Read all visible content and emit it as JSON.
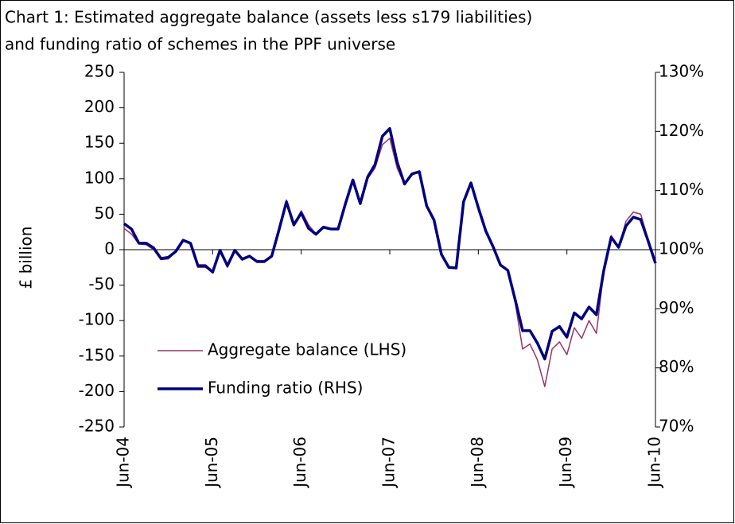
{
  "chart_data": {
    "type": "line",
    "title": [
      "Chart 1: Estimated aggregate balance (assets less s179 liabilities)",
      "and funding ratio of schemes in the PPF universe"
    ],
    "ylabel": "£ billion",
    "categories": [
      "Jun-04",
      null,
      null,
      null,
      null,
      null,
      null,
      null,
      null,
      null,
      null,
      null,
      "Jun-05",
      null,
      null,
      null,
      null,
      null,
      null,
      null,
      null,
      null,
      null,
      null,
      "Jun-06",
      null,
      null,
      null,
      null,
      null,
      null,
      null,
      null,
      null,
      null,
      null,
      "Jun-07",
      null,
      null,
      null,
      null,
      null,
      null,
      null,
      null,
      null,
      null,
      null,
      "Jun-08",
      null,
      null,
      null,
      null,
      null,
      null,
      null,
      null,
      null,
      null,
      null,
      "Jun-09",
      null,
      null,
      null,
      null,
      null,
      null,
      null,
      null,
      null,
      null,
      null,
      "Jun-10"
    ],
    "series": [
      {
        "name": "Aggregate balance (LHS)",
        "color": "#993366",
        "axis": "y",
        "values": [
          30,
          22,
          8,
          7,
          0,
          -14,
          -13,
          -3,
          13,
          8,
          -25,
          -25,
          -30,
          0,
          -25,
          0,
          -15,
          -10,
          -18,
          -18,
          -10,
          30,
          70,
          35,
          55,
          35,
          22,
          33,
          30,
          30,
          65,
          95,
          65,
          100,
          115,
          148,
          157,
          115,
          92,
          105,
          110,
          62,
          40,
          -5,
          -25,
          -25,
          70,
          95,
          60,
          28,
          4,
          -22,
          -30,
          -75,
          -140,
          -133,
          -155,
          -193,
          -140,
          -130,
          -148,
          -110,
          -125,
          -100,
          -118,
          -30,
          20,
          3,
          40,
          53,
          50,
          15,
          -20
        ]
      },
      {
        "name": "Funding ratio (RHS)",
        "color": "#000080",
        "axis": "y2",
        "values": [
          104.4,
          103.5,
          101.1,
          101.1,
          100.3,
          98.5,
          98.7,
          99.7,
          101.6,
          101.1,
          97.3,
          97.3,
          96.2,
          99.9,
          97.3,
          99.9,
          98.4,
          98.9,
          98.0,
          98.0,
          98.9,
          103.4,
          108.1,
          104.2,
          106.2,
          103.6,
          102.6,
          103.8,
          103.5,
          103.5,
          107.8,
          111.8,
          107.8,
          112.3,
          114.4,
          119.2,
          120.5,
          114.8,
          111.1,
          112.8,
          113.2,
          107.4,
          105.0,
          99.2,
          97.0,
          96.9,
          108.1,
          111.3,
          107.1,
          103.2,
          100.5,
          97.4,
          96.5,
          91.5,
          86.3,
          86.3,
          84.2,
          81.5,
          86.2,
          87.0,
          85.2,
          89.3,
          88.3,
          90.3,
          89.0,
          96.5,
          102.1,
          100.4,
          104.0,
          105.5,
          105.1,
          101.5,
          97.7
        ]
      }
    ],
    "ylim": [
      -250,
      250
    ],
    "yticks": [
      -250,
      -200,
      -150,
      -100,
      -50,
      0,
      50,
      100,
      150,
      200,
      250
    ],
    "y2lim": [
      70,
      130
    ],
    "y2ticks": [
      {
        "value": 70,
        "label": "70%"
      },
      {
        "value": 80,
        "label": "80%"
      },
      {
        "value": 90,
        "label": "90%"
      },
      {
        "value": 100,
        "label": "100%"
      },
      {
        "value": 110,
        "label": "110%"
      },
      {
        "value": 120,
        "label": "120%"
      },
      {
        "value": 130,
        "label": "130%"
      }
    ],
    "legend": "lower-left"
  }
}
